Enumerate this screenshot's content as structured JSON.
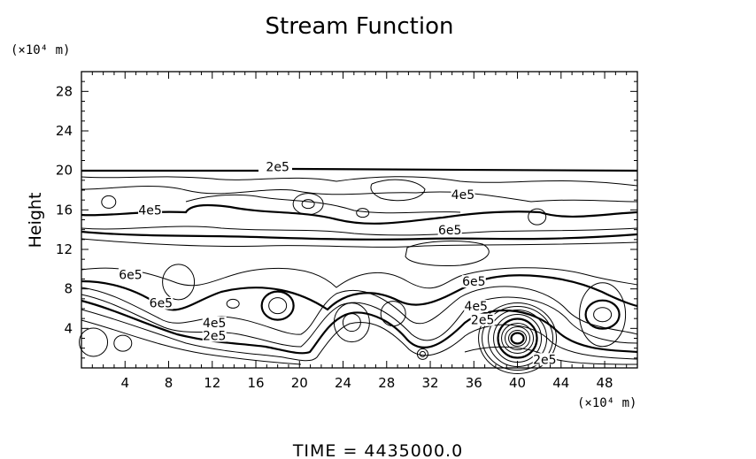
{
  "chart_data": {
    "type": "contour",
    "title": "Stream Function",
    "ylabel": "Height",
    "xlabel": "",
    "x_unit_label": "(×10⁴ m)",
    "y_unit_label": "(×10⁴ m)",
    "xlim": [
      0,
      51
    ],
    "ylim": [
      0,
      30
    ],
    "x_ticks": [
      4,
      8,
      12,
      16,
      20,
      24,
      28,
      32,
      36,
      40,
      44,
      48
    ],
    "y_ticks": [
      4,
      8,
      12,
      16,
      20,
      24,
      28
    ],
    "contour_labels": [
      {
        "text": "2e5",
        "x": 18.0,
        "y": 20.1
      },
      {
        "text": "4e5",
        "x": 35.0,
        "y": 17.3
      },
      {
        "text": "4e5",
        "x": 6.3,
        "y": 15.7
      },
      {
        "text": "6e5",
        "x": 33.8,
        "y": 13.7
      },
      {
        "text": "6e5",
        "x": 36.0,
        "y": 8.5
      },
      {
        "text": "6e5",
        "x": 4.5,
        "y": 9.2
      },
      {
        "text": "6e5",
        "x": 7.3,
        "y": 6.3
      },
      {
        "text": "4e5",
        "x": 12.2,
        "y": 4.3
      },
      {
        "text": "2e5",
        "x": 12.2,
        "y": 3.0
      },
      {
        "text": "4e5",
        "x": 36.2,
        "y": 6.0
      },
      {
        "text": "2e5",
        "x": 36.8,
        "y": 4.6
      },
      {
        "text": "2e5",
        "x": 42.5,
        "y": 0.6
      }
    ],
    "time_label": "TIME  =  4435000.0",
    "grid": false,
    "legend": "none"
  }
}
